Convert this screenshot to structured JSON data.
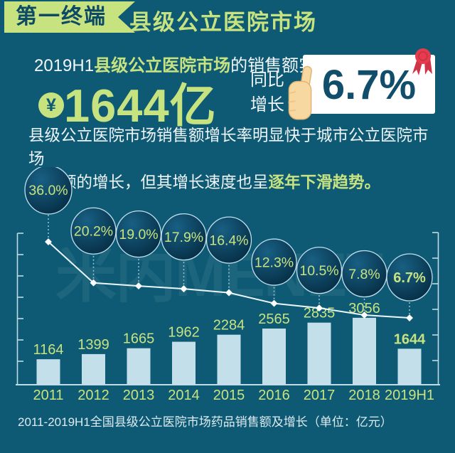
{
  "header": {
    "badge": "第一终端",
    "title": "县级公立医院市场"
  },
  "summary": {
    "line1_prefix": "2019H1",
    "line1_highlight": "县级公立医院市场",
    "line1_suffix": "的销售额实现",
    "currency_symbol": "¥",
    "amount": "1644亿",
    "yoy_label_line1": "同比",
    "yoy_label_line2": "增长",
    "yoy_value": "6.7%"
  },
  "paragraph": {
    "line1": "县级公立医院市场销售额增长率明显快于城市公立医院市场",
    "line2_prefix": "销售额的增长，但其增长速度也呈",
    "highlight": "逐年下滑趋势",
    "period": "。"
  },
  "watermark": "米内MENET",
  "caption": "2011-2019H1全国县级公立医院市场药品销售额及增长（单位：亿元）",
  "colors": {
    "background": "#0E5A75",
    "green": "#C7E380",
    "dark_teal": "#0C4A66",
    "bar": "#C3DFEA",
    "axis": "#BCDCE6",
    "line": "#EAF6FB",
    "dash": "#93C6D8",
    "bubble_stroke": "#BFE0EE",
    "bubble_grad_in": "#186084",
    "bubble_grad_out": "#052A40",
    "card_text": "#114E6B",
    "red": "#E53B4F",
    "skin": "#F7D8A1"
  },
  "chart_data": {
    "type": "bar+line",
    "title": "2011-2019H1全国县级公立医院市场药品销售额及增长",
    "unit": "亿元",
    "categories": [
      "2011",
      "2012",
      "2013",
      "2014",
      "2015",
      "2016",
      "2017",
      "2018",
      "2019H1"
    ],
    "series": [
      {
        "name": "药品销售额",
        "type": "bar",
        "values": [
          1164,
          1399,
          1665,
          1962,
          2284,
          2565,
          2835,
          3056,
          1644
        ]
      },
      {
        "name": "增长率",
        "type": "line",
        "values": [
          36.0,
          20.2,
          19.0,
          17.9,
          16.4,
          12.3,
          10.5,
          7.8,
          6.7
        ]
      }
    ],
    "growth_labels": [
      "36.0%",
      "20.2%",
      "19.0%",
      "17.9%",
      "16.4%",
      "12.3%",
      "10.5%",
      "7.8%",
      "6.7%"
    ],
    "ylim_bar": [
      0,
      3500
    ],
    "grid": false,
    "legend_position": "none"
  }
}
